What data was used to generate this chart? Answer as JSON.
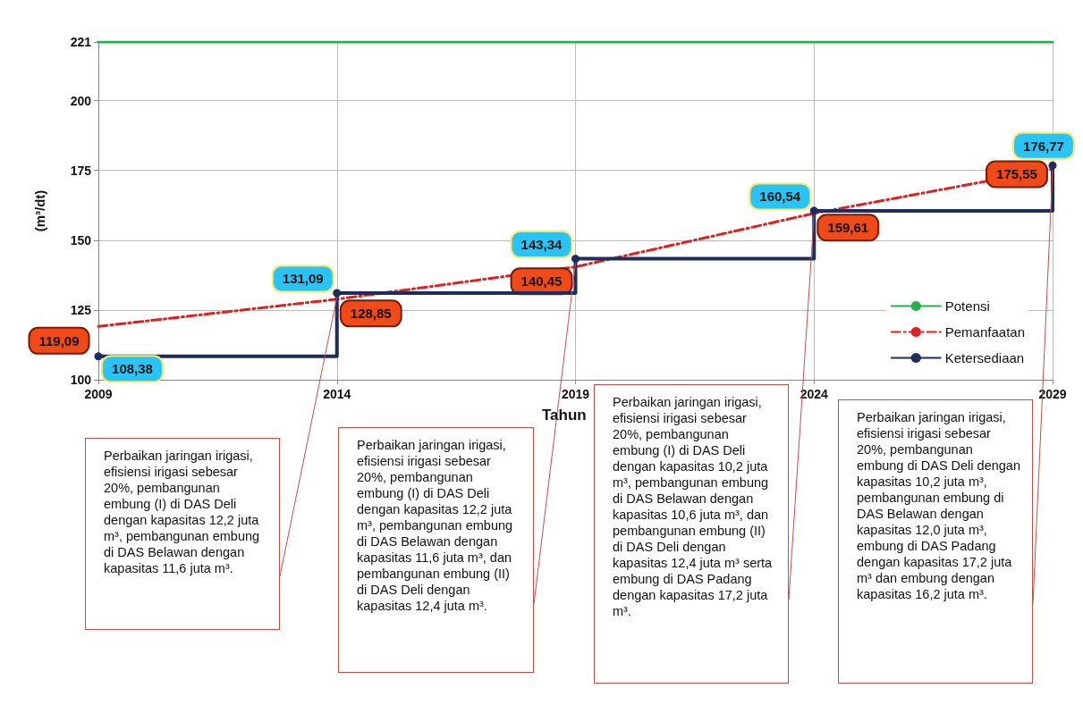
{
  "chart_data": {
    "type": "line",
    "xlabel": "Tahun",
    "ylabel": "(m³/dt)",
    "x": [
      2009,
      2014,
      2019,
      2024,
      2029
    ],
    "xlim": [
      2009,
      2029
    ],
    "xticks": [
      2009,
      2014,
      2019,
      2024,
      2029
    ],
    "ylim": [
      100,
      221
    ],
    "yticks": [
      100,
      125,
      150,
      175,
      200,
      221
    ],
    "grid": true,
    "legend": "right",
    "series": [
      {
        "name": "Potensi",
        "color": "#22b14c",
        "x": [
          2009,
          2029
        ],
        "values": [
          221,
          221
        ],
        "marker": "none",
        "line_style": "solid"
      },
      {
        "name": "Pemanfaatan",
        "color": "#e02020",
        "values": [
          119.09,
          128.85,
          140.45,
          159.61,
          175.55
        ],
        "marker": "none",
        "line_style": "dashed",
        "value_labels": [
          "119,09",
          "128,85",
          "140,45",
          "159,61",
          "175,55"
        ]
      },
      {
        "name": "Ketersediaan",
        "type": "step",
        "color": "#1f2d5c",
        "values": [
          108.38,
          131.09,
          143.34,
          160.54,
          176.77
        ],
        "marker": "circle",
        "line_style": "solid",
        "value_labels": [
          "108,38",
          "131,09",
          "143,34",
          "160,54",
          "176,77"
        ]
      }
    ],
    "annotations": [
      "Perbaikan jaringan irigasi, efisiensi irigasi sebesar 20%, pembangunan embung (I) di DAS Deli dengan kapasitas 12,2 juta m³, pembangunan embung di DAS Belawan dengan kapasitas 11,6 juta m³.",
      "Perbaikan jaringan irigasi, efisiensi irigasi sebesar 20%, pembangunan embung (I) di DAS Deli dengan kapasitas 12,2 juta m³, pembangunan embung di DAS Belawan dengan kapasitas 11,6 juta m³, dan pembangunan embung (II) di DAS Deli dengan kapasitas 12,4 juta m³.",
      "Perbaikan jaringan irigasi, efisiensi irigasi sebesar 20%, pembangunan embung (I) di DAS Deli dengan kapasitas 10,2 juta m³, pembangunan embung di DAS Belawan dengan kapasitas 10,6 juta m³, dan pembangunan embung (II) di DAS Deli dengan kapasitas 12,4 juta m³ serta embung di DAS Padang dengan kapasitas 17,2 juta m³.",
      "Perbaikan jaringan irigasi, efisiensi irigasi sebesar 20%, pembangunan embung di DAS Deli dengan kapasitas 10,2 juta m³, pembangunan embung di DAS Belawan dengan kapasitas 12,0 juta m³, embung di DAS Padang dengan kapasitas 17,2 juta m³ dan embung dengan kapasitas 16,2 juta m³."
    ]
  }
}
